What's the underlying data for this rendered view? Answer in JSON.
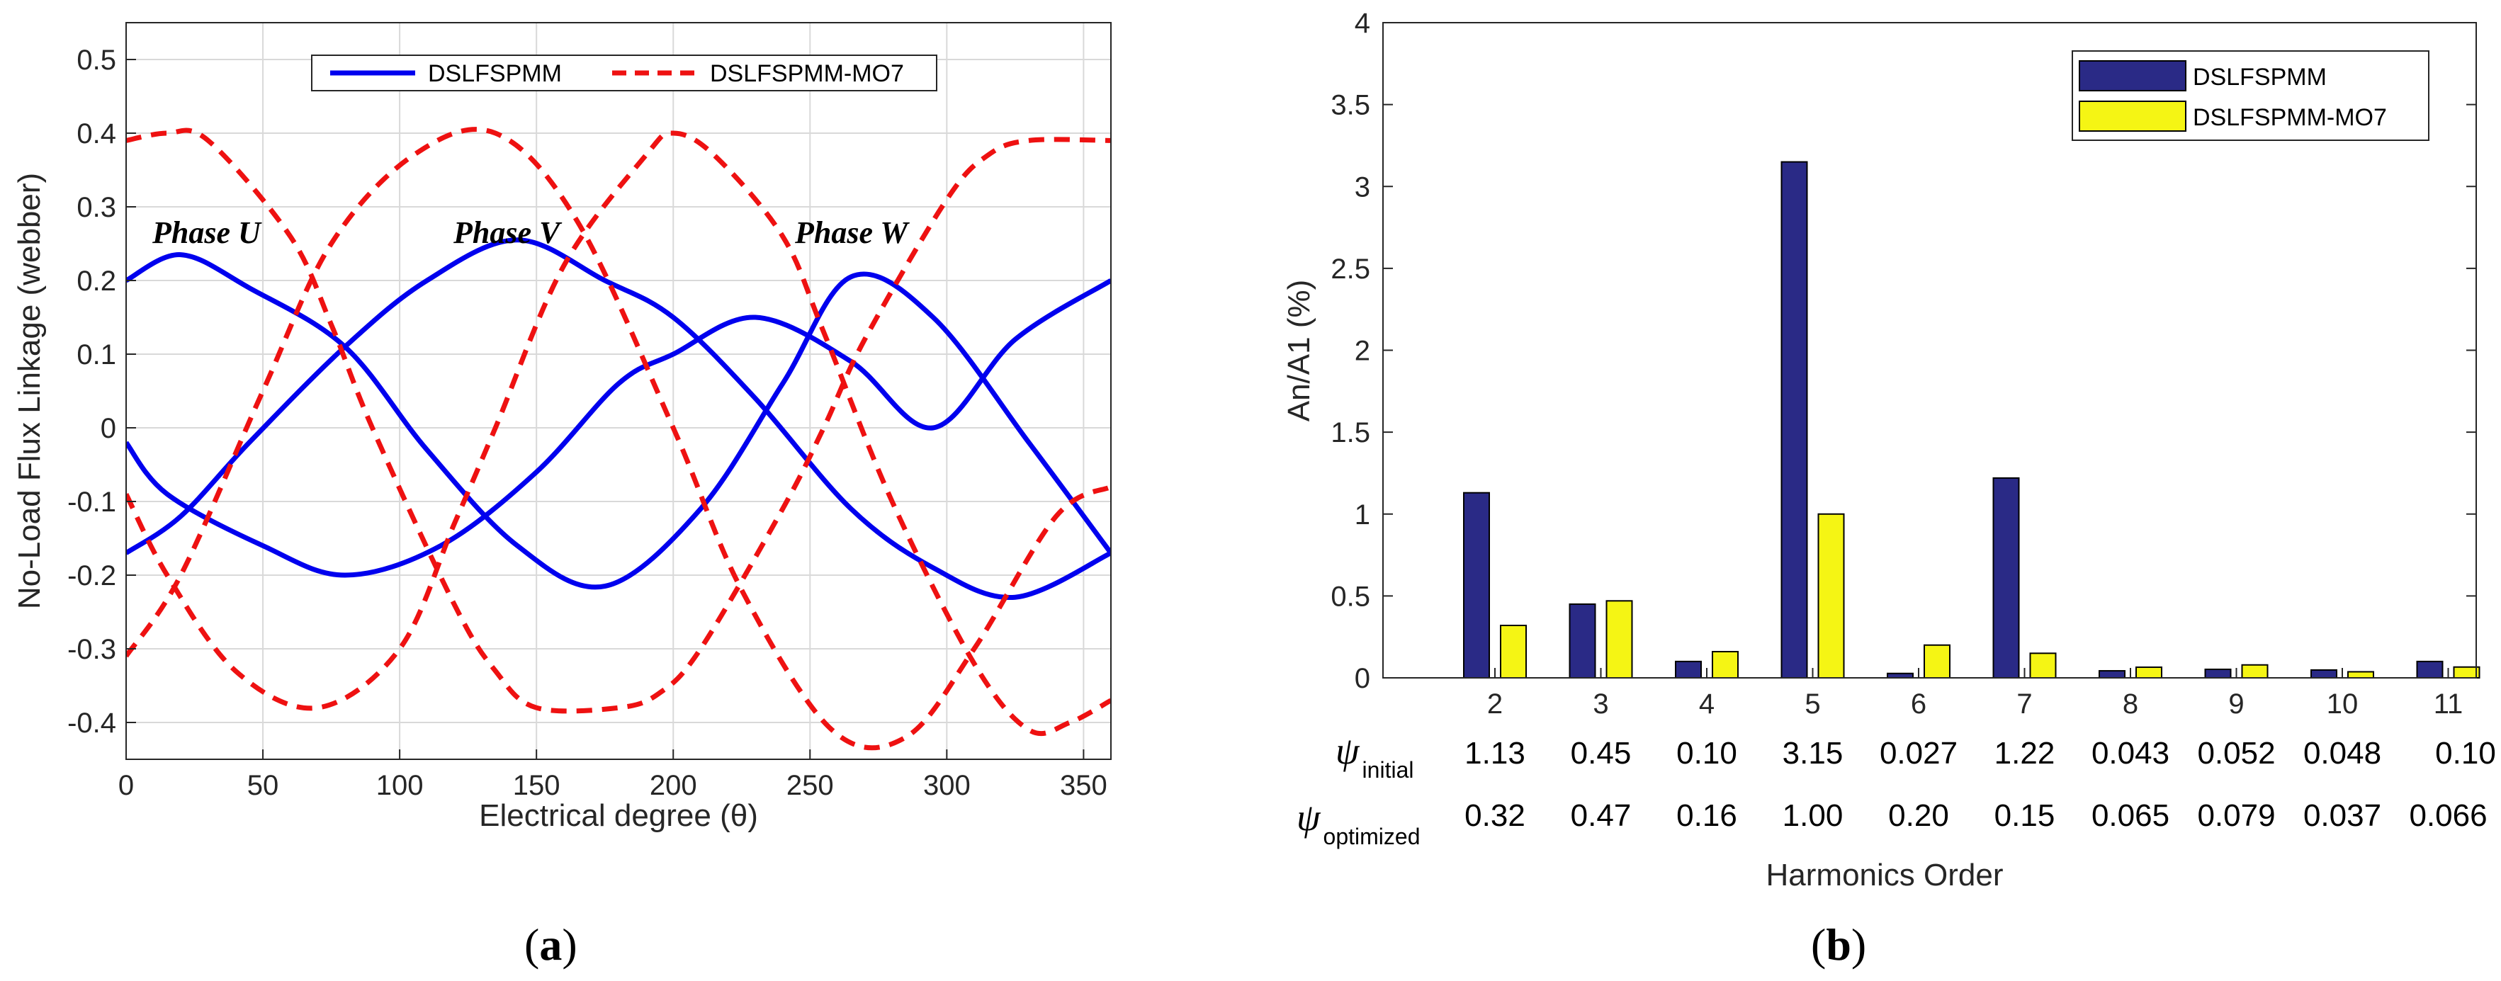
{
  "chart_data": [
    {
      "type": "line",
      "xlabel": "Electrical degree (θ)",
      "ylabel": "No-Load Flux Linkage (webber)",
      "xlim": [
        0,
        360
      ],
      "ylim": [
        -0.45,
        0.55
      ],
      "xticks": [
        "0",
        "50",
        "100",
        "150",
        "200",
        "250",
        "300",
        "350"
      ],
      "yticks": [
        "-0.4",
        "-0.3",
        "-0.2",
        "-0.1",
        "0",
        "0.1",
        "0.2",
        "0.3",
        "0.4",
        "0.5"
      ],
      "grid": true,
      "legend_position": "top",
      "legend": [
        "DSLFSPMM",
        "DSLFSPMM-MO7"
      ],
      "annotations": [
        {
          "text": "Phase U",
          "x": 45,
          "y": 0.27
        },
        {
          "text": "Phase V",
          "x": 143,
          "y": 0.27
        },
        {
          "text": "Phase W",
          "x": 268,
          "y": 0.27
        }
      ],
      "series": [
        {
          "name": "DSLFSPMM",
          "color": "#0000ee",
          "style": "solid",
          "x": [
            0,
            20,
            45,
            80,
            110,
            143,
            175,
            210,
            240,
            265,
            295,
            330,
            360
          ],
          "y": [
            0.2,
            0.235,
            0.19,
            0.11,
            -0.03,
            -0.16,
            -0.215,
            -0.11,
            0.06,
            0.205,
            0.15,
            -0.02,
            -0.17
          ]
        },
        {
          "name": "DSLFSPMM",
          "color": "#0000ee",
          "style": "solid",
          "x": [
            0,
            20,
            45,
            80,
            110,
            143,
            175,
            200,
            230,
            265,
            295,
            325,
            360
          ],
          "y": [
            -0.17,
            -0.12,
            -0.02,
            0.11,
            0.2,
            0.255,
            0.2,
            0.15,
            0.04,
            -0.11,
            -0.19,
            -0.23,
            -0.17
          ]
        },
        {
          "name": "DSLFSPMM",
          "color": "#0000ee",
          "style": "solid",
          "x": [
            0,
            15,
            50,
            80,
            115,
            150,
            180,
            200,
            230,
            265,
            295,
            325,
            360
          ],
          "y": [
            -0.02,
            -0.09,
            -0.16,
            -0.2,
            -0.16,
            -0.06,
            0.06,
            0.1,
            0.15,
            0.09,
            0.0,
            0.12,
            0.2
          ]
        },
        {
          "name": "DSLFSPMM-MO7",
          "color": "#ee1111",
          "style": "dashed",
          "x": [
            0,
            15,
            30,
            60,
            75,
            90,
            120,
            135,
            150,
            180,
            195,
            210,
            240,
            255,
            270,
            300,
            315,
            330,
            360
          ],
          "y": [
            0.39,
            0.4,
            0.39,
            0.26,
            0.14,
            0.0,
            -0.24,
            -0.33,
            -0.38,
            -0.38,
            -0.36,
            -0.3,
            -0.11,
            0.0,
            0.12,
            0.31,
            0.37,
            0.39,
            0.39
          ]
        },
        {
          "name": "DSLFSPMM-MO7",
          "color": "#ee1111",
          "style": "dashed",
          "x": [
            0,
            15,
            40,
            70,
            100,
            120,
            135,
            160,
            190,
            200,
            215,
            240,
            255,
            280,
            310,
            330,
            345,
            360
          ],
          "y": [
            -0.09,
            -0.2,
            -0.33,
            -0.38,
            -0.3,
            -0.13,
            0.0,
            0.22,
            0.37,
            0.4,
            0.37,
            0.26,
            0.13,
            -0.1,
            -0.32,
            -0.41,
            -0.4,
            -0.37
          ]
        },
        {
          "name": "DSLFSPMM-MO7",
          "color": "#ee1111",
          "style": "dashed",
          "x": [
            0,
            20,
            50,
            75,
            105,
            135,
            165,
            200,
            225,
            258,
            285,
            310,
            340,
            360
          ],
          "y": [
            -0.31,
            -0.2,
            0.05,
            0.25,
            0.37,
            0.4,
            0.28,
            0.0,
            -0.22,
            -0.41,
            -0.42,
            -0.3,
            -0.12,
            -0.08
          ]
        }
      ]
    },
    {
      "type": "bar",
      "xlabel": "Harmonics Order",
      "ylabel": "An/A1 (%)",
      "ylim": [
        0,
        4
      ],
      "yticks": [
        "0",
        "0.5",
        "1",
        "1.5",
        "2",
        "2.5",
        "3",
        "3.5",
        "4"
      ],
      "grid": false,
      "legend_position": "top-right",
      "categories": [
        "2",
        "3",
        "4",
        "5",
        "6",
        "7",
        "8",
        "9",
        "10",
        "11"
      ],
      "series": [
        {
          "name": "DSLFSPMM",
          "color": "#2a2a86",
          "values": [
            1.13,
            0.45,
            0.1,
            3.15,
            0.027,
            1.22,
            0.043,
            0.052,
            0.048,
            0.1
          ]
        },
        {
          "name": "DSLFSPMM-MO7",
          "color": "#f5f514",
          "values": [
            0.32,
            0.47,
            0.16,
            1.0,
            0.2,
            0.15,
            0.065,
            0.079,
            0.037,
            0.066
          ]
        }
      ],
      "table": {
        "rows": [
          {
            "symbol": "ψ",
            "subscript": "initial",
            "values": [
              "1.13",
              "0.45",
              "0.10",
              "3.15",
              "0.027",
              "1.22",
              "0.043",
              "0.052",
              "0.048",
              "0.10"
            ]
          },
          {
            "symbol": "ψ",
            "subscript": "optimized",
            "values": [
              "0.32",
              "0.47",
              "0.16",
              "1.00",
              "0.20",
              "0.15",
              "0.065",
              "0.079",
              "0.037",
              "0.066"
            ]
          }
        ]
      }
    }
  ],
  "panels": {
    "a_open": "(",
    "a_letter": "a",
    "a_close": ")",
    "b_open": "(",
    "b_letter": "b",
    "b_close": ")"
  }
}
